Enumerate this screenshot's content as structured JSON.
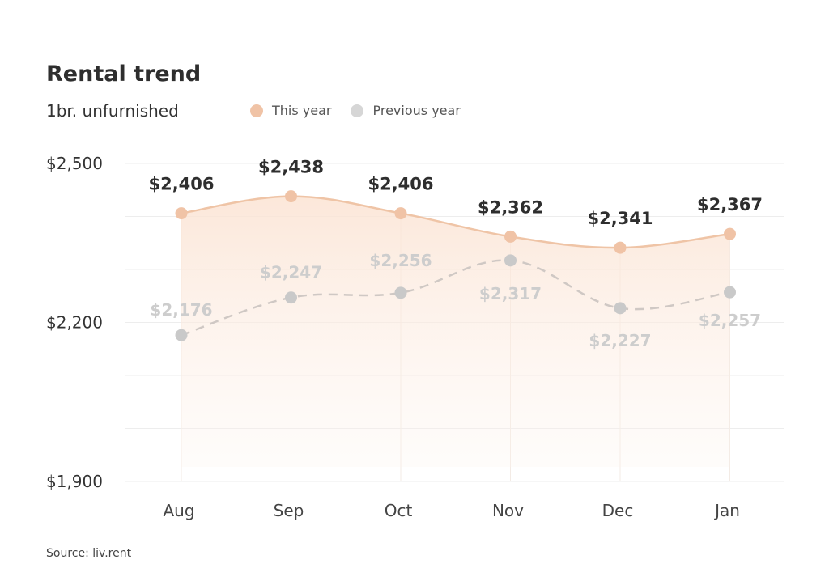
{
  "chart_data": {
    "type": "line",
    "title": "Rental trend",
    "subtitle": "1br. unfurnished",
    "categories": [
      "Aug",
      "Sep",
      "Oct",
      "Nov",
      "Dec",
      "Jan"
    ],
    "series": [
      {
        "name": "This year",
        "values": [
          2406,
          2438,
          2406,
          2362,
          2341,
          2367
        ],
        "labels": [
          "$2,406",
          "$2,438",
          "$2,406",
          "$2,362",
          "$2,341",
          "$2,367"
        ],
        "color": "#f0c3a6",
        "style": "solid-area"
      },
      {
        "name": "Previous year",
        "values": [
          2176,
          2247,
          2256,
          2317,
          2227,
          2257
        ],
        "labels": [
          "$2,176",
          "$2,247",
          "$2,256",
          "$2,317",
          "$2,227",
          "$2,257"
        ],
        "color": "#cfcfcf",
        "style": "dashed"
      }
    ],
    "y_ticks": [
      {
        "value": 2500,
        "label": "$2,500"
      },
      {
        "value": 2200,
        "label": "$2,200"
      },
      {
        "value": 1900,
        "label": "$1,900"
      }
    ],
    "ylim": [
      1900,
      2500
    ],
    "grid": true,
    "legend_position": "top",
    "source": "Source: liv.rent"
  }
}
